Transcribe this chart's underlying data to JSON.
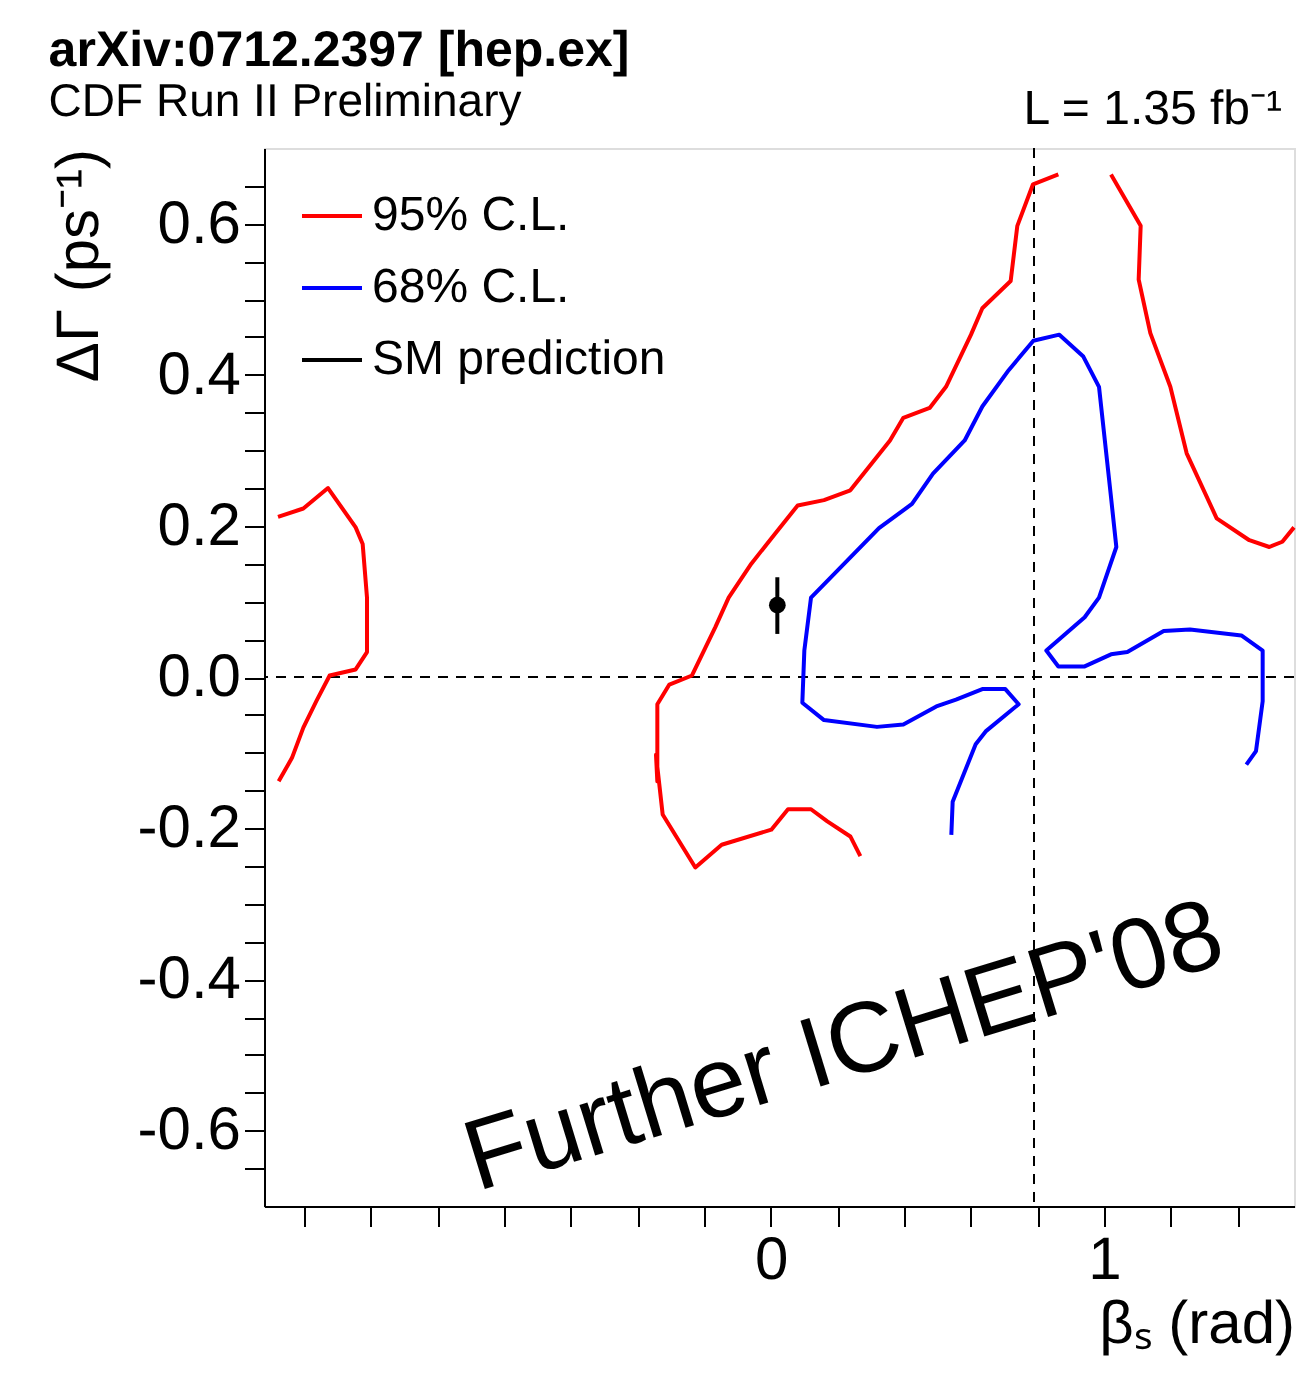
{
  "chart_data": {
    "type": "line",
    "title": "arXiv:0712.2397 [hep.ex]",
    "subtitle": "CDF Run II Preliminary",
    "xlabel": "βₛ (rad)",
    "ylabel": "ΔΓ (ps⁻¹)",
    "annotations": [
      "L = 1.35 fb⁻¹",
      "Further ICHEP'08"
    ],
    "xlim": [
      -1.52,
      1.57
    ],
    "ylim": [
      -0.7,
      0.7
    ],
    "xticks": [
      {
        "value": -1.4,
        "label": null
      },
      {
        "value": -1.2,
        "label": null
      },
      {
        "value": -1,
        "label": null
      },
      {
        "value": -0.8,
        "label": null
      },
      {
        "value": -0.6,
        "label": null
      },
      {
        "value": -0.4,
        "label": null
      },
      {
        "value": -0.2,
        "label": null
      },
      0,
      {
        "value": 0.2,
        "label": null
      },
      {
        "value": 0.4,
        "label": null
      },
      {
        "value": 0.6,
        "label": null
      },
      {
        "value": 0.8,
        "label": null
      },
      1,
      {
        "value": 1.2,
        "label": null
      },
      {
        "value": 1.4,
        "label": null
      }
    ],
    "yticks": [
      -0.6,
      {
        "value": -0.65,
        "label": null
      },
      {
        "value": -0.55,
        "label": null
      },
      {
        "value": -0.5,
        "label": null
      },
      {
        "value": -0.45,
        "label": null
      },
      -0.4,
      {
        "value": -0.35,
        "label": null
      },
      {
        "value": -0.3,
        "label": null
      },
      {
        "value": -0.25,
        "label": null
      },
      -0.2,
      {
        "value": -0.15,
        "label": null
      },
      {
        "value": -0.1,
        "label": null
      },
      {
        "value": -0.05,
        "label": null
      },
      {
        "value": 0,
        "label": "0.0"
      },
      {
        "value": 0.05,
        "label": null
      },
      {
        "value": 0.1,
        "label": null
      },
      {
        "value": 0.15,
        "label": null
      },
      0.2,
      {
        "value": 0.25,
        "label": null
      },
      {
        "value": 0.3,
        "label": null
      },
      {
        "value": 0.35,
        "label": null
      },
      0.4,
      {
        "value": 0.45,
        "label": null
      },
      {
        "value": 0.5,
        "label": null
      },
      {
        "value": 0.55,
        "label": null
      },
      0.6,
      {
        "value": 0.65,
        "label": null
      }
    ],
    "grid": false,
    "legend": "top left",
    "ref_lines": [
      {
        "axis": "x",
        "value": 0.79,
        "color": "#000000",
        "line_style": "dashed"
      },
      {
        "axis": "y",
        "value": 0,
        "color": "#000000",
        "line_style": "dashed"
      }
    ],
    "series": [
      {
        "name": "95% C.L.",
        "color": "#ff0000",
        "line_style": "solid",
        "x": [
          0.269,
          0.239,
          0.17,
          0.121,
          0.052,
          0.002,
          -0.147,
          -0.226,
          -0.324,
          -0.344,
          -0.34,
          -0.34,
          -0.304,
          -0.236,
          -0.166,
          -0.126,
          -0.058,
          0.012,
          0.081,
          0.16,
          0.239,
          0.358,
          0.398,
          0.477,
          0.526,
          0.601,
          0.635,
          0.72,
          0.74,
          0.787,
          0.863
        ],
        "values": [
          -0.237,
          -0.211,
          -0.191,
          -0.175,
          -0.175,
          -0.202,
          -0.222,
          -0.252,
          -0.182,
          -0.103,
          -0.138,
          -0.036,
          -0.01,
          0.002,
          0.066,
          0.105,
          0.15,
          0.189,
          0.227,
          0.234,
          0.247,
          0.313,
          0.343,
          0.356,
          0.384,
          0.453,
          0.488,
          0.524,
          0.597,
          0.652,
          0.665
        ]
      },
      {
        "color": "#ff0000",
        "line_style": "solid",
        "x": [
          1.021,
          1.11,
          1.104,
          1.139,
          1.199,
          1.248,
          1.338,
          1.436,
          1.496,
          1.535,
          1.57
        ],
        "values": [
          0.665,
          0.597,
          0.526,
          0.455,
          0.384,
          0.296,
          0.21,
          0.181,
          0.172,
          0.179,
          0.198
        ]
      },
      {
        "color": "#ff0000",
        "line_style": "solid",
        "x": [
          -1.478,
          -1.402,
          -1.328,
          -1.245,
          -1.224,
          -1.211,
          -1.211,
          -1.245,
          -1.323,
          -1.363,
          -1.402,
          -1.436,
          -1.476
        ],
        "values": [
          0.212,
          0.223,
          0.25,
          0.198,
          0.176,
          0.105,
          0.033,
          0.01,
          0.002,
          -0.032,
          -0.067,
          -0.107,
          -0.138
        ]
      },
      {
        "name": "68% C.L.",
        "color": "#0000ff",
        "line_style": "solid",
        "x": [
          0.542,
          0.546,
          0.615,
          0.645,
          0.744,
          0.704,
          0.635,
          0.556,
          0.497,
          0.398,
          0.319,
          0.16,
          0.095,
          0.101,
          0.121,
          0.325,
          0.424,
          0.487,
          0.582,
          0.635,
          0.714,
          0.788,
          0.866,
          0.938,
          0.985,
          1.021,
          1.037,
          0.985,
          0.942,
          0.827,
          0.863,
          0.942,
          1.021,
          1.07,
          1.179,
          1.258,
          1.412,
          1.476,
          1.476,
          1.456,
          1.427
        ],
        "values": [
          -0.209,
          -0.165,
          -0.089,
          -0.072,
          -0.036,
          -0.016,
          -0.016,
          -0.03,
          -0.039,
          -0.063,
          -0.066,
          -0.057,
          -0.034,
          0.035,
          0.105,
          0.197,
          0.229,
          0.269,
          0.313,
          0.358,
          0.406,
          0.445,
          0.453,
          0.424,
          0.384,
          0.238,
          0.172,
          0.105,
          0.079,
          0.035,
          0.014,
          0.014,
          0.03,
          0.033,
          0.061,
          0.063,
          0.055,
          0.035,
          -0.032,
          -0.098,
          -0.116
        ]
      },
      {
        "name": "SM prediction",
        "color": "#000000",
        "type": "scatter",
        "marker": "circle",
        "x": [
          0.02
        ],
        "values": [
          0.095
        ],
        "errors": [
          [
            0.057,
            0.132
          ]
        ]
      }
    ]
  }
}
